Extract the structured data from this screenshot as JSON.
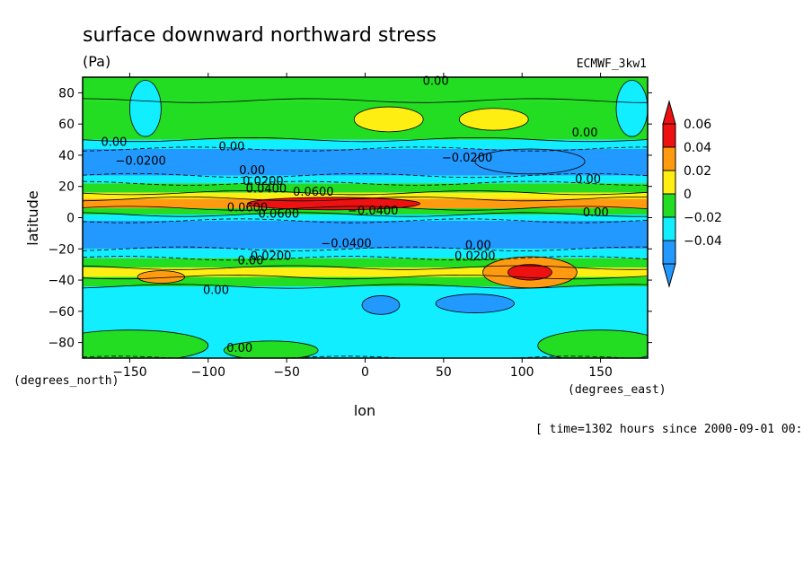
{
  "chart_data": {
    "type": "heatmap",
    "title": "surface downward northward stress",
    "units": "(Pa)",
    "dataset_label": "ECMWF_3kw1",
    "xlabel": "lon",
    "ylabel": "latitude",
    "x_unit_label": "(degrees_east)",
    "y_unit_label": "(degrees_north)",
    "time_label": "[ time=1302 hours since 2000-09-01 00:",
    "xlim": [
      -180,
      180
    ],
    "ylim": [
      -90,
      90
    ],
    "x_ticks": [
      -150,
      -100,
      -50,
      0,
      50,
      100,
      150
    ],
    "x_tick_labels": [
      "−150",
      "−100",
      "−50",
      "0",
      "50",
      "100",
      "150"
    ],
    "y_ticks": [
      80,
      60,
      40,
      20,
      0,
      -20,
      -40,
      -60,
      -80
    ],
    "y_tick_labels": [
      "80",
      "60",
      "40",
      "20",
      "0",
      "−20",
      "−40",
      "−60",
      "−80"
    ],
    "colorbar": {
      "levels": [
        0.06,
        0.04,
        0.02,
        0,
        -0.02,
        -0.04
      ],
      "labels": [
        "0.06",
        "0.04",
        "0.02",
        "0",
        "−0.02",
        "−0.04"
      ],
      "colors": [
        "#ee1111",
        "#ff9a11",
        "#ffee11",
        "#22dd22",
        "#11eeff",
        "#2299ff"
      ]
    },
    "bands": [
      {
        "lat": [
          75,
          90
        ],
        "color": "#22dd22"
      },
      {
        "lat": [
          50,
          75
        ],
        "color": "#22dd22"
      },
      {
        "lat": [
          44,
          50
        ],
        "color": "#11eeff"
      },
      {
        "lat": [
          27,
          44
        ],
        "color": "#2299ff"
      },
      {
        "lat": [
          22,
          27
        ],
        "color": "#11eeff"
      },
      {
        "lat": [
          16,
          22
        ],
        "color": "#22dd22"
      },
      {
        "lat": [
          12,
          16
        ],
        "color": "#ffee11"
      },
      {
        "lat": [
          6,
          12
        ],
        "color": "#ff9a11"
      },
      {
        "lat": [
          2,
          6
        ],
        "color": "#22dd22"
      },
      {
        "lat": [
          -2,
          2
        ],
        "color": "#11eeff"
      },
      {
        "lat": [
          -20,
          -2
        ],
        "color": "#2299ff"
      },
      {
        "lat": [
          -26,
          -20
        ],
        "color": "#11eeff"
      },
      {
        "lat": [
          -32,
          -26
        ],
        "color": "#22dd22"
      },
      {
        "lat": [
          -38,
          -32
        ],
        "color": "#ffee11"
      },
      {
        "lat": [
          -44,
          -38
        ],
        "color": "#22dd22"
      },
      {
        "lat": [
          -90,
          -44
        ],
        "color": "#11eeff"
      }
    ],
    "blobs": [
      {
        "lon": -20,
        "lat": 9,
        "rlon": 55,
        "rlat": 4,
        "color": "#ee1111"
      },
      {
        "lon": 105,
        "lat": -35,
        "rlon": 30,
        "rlat": 10,
        "color": "#ff9a11"
      },
      {
        "lon": 105,
        "lat": -35,
        "rlon": 14,
        "rlat": 5,
        "color": "#ee1111"
      },
      {
        "lon": 15,
        "lat": 63,
        "rlon": 22,
        "rlat": 8,
        "color": "#ffee11"
      },
      {
        "lon": 82,
        "lat": 63,
        "rlon": 22,
        "rlat": 7,
        "color": "#ffee11"
      },
      {
        "lon": 105,
        "lat": 36,
        "rlon": 35,
        "rlat": 8,
        "color": "#2299ff"
      },
      {
        "lon": -140,
        "lat": 70,
        "rlon": 10,
        "rlat": 18,
        "color": "#11eeff"
      },
      {
        "lon": 170,
        "lat": 70,
        "rlon": 10,
        "rlat": 18,
        "color": "#11eeff"
      },
      {
        "lon": 10,
        "lat": -56,
        "rlon": 12,
        "rlat": 6,
        "color": "#2299ff"
      },
      {
        "lon": 70,
        "lat": -55,
        "rlon": 25,
        "rlat": 6,
        "color": "#2299ff"
      },
      {
        "lon": -130,
        "lat": -38,
        "rlon": 15,
        "rlat": 4,
        "color": "#ff9a11"
      },
      {
        "lon": -150,
        "lat": -82,
        "rlon": 50,
        "rlat": 10,
        "color": "#22dd22"
      },
      {
        "lon": -60,
        "lat": -85,
        "rlon": 30,
        "rlat": 6,
        "color": "#22dd22"
      },
      {
        "lon": 150,
        "lat": -82,
        "rlon": 40,
        "rlat": 10,
        "color": "#22dd22"
      }
    ],
    "contour_labels": [
      {
        "text": "0.00",
        "lon": 45,
        "lat": 85
      },
      {
        "text": "0.00",
        "lon": -160,
        "lat": 46
      },
      {
        "text": "0.00",
        "lon": -85,
        "lat": 43
      },
      {
        "text": "−0.0200",
        "lon": -143,
        "lat": 34
      },
      {
        "text": "0.00",
        "lon": 140,
        "lat": 52
      },
      {
        "text": "−0.0200",
        "lon": 65,
        "lat": 36
      },
      {
        "text": "0.00",
        "lon": -72,
        "lat": 28
      },
      {
        "text": "0.0200",
        "lon": -65,
        "lat": 21
      },
      {
        "text": "0.0400",
        "lon": -63,
        "lat": 16
      },
      {
        "text": "0.0600",
        "lon": -33,
        "lat": 14
      },
      {
        "text": "0.00",
        "lon": 142,
        "lat": 22
      },
      {
        "text": "0.0600",
        "lon": -75,
        "lat": 4
      },
      {
        "text": "0.0600",
        "lon": -55,
        "lat": 0
      },
      {
        "text": "−0.0400",
        "lon": 5,
        "lat": 2
      },
      {
        "text": "0.00",
        "lon": 147,
        "lat": 1
      },
      {
        "text": "−0.0400",
        "lon": -12,
        "lat": -19
      },
      {
        "text": "0.00",
        "lon": 72,
        "lat": -20
      },
      {
        "text": "0.0200",
        "lon": 70,
        "lat": -27
      },
      {
        "text": "0.0200",
        "lon": -60,
        "lat": -27
      },
      {
        "text": "0.00",
        "lon": -73,
        "lat": -30
      },
      {
        "text": "0.00",
        "lon": -95,
        "lat": -49
      },
      {
        "text": "0.00",
        "lon": -80,
        "lat": -86
      }
    ]
  }
}
